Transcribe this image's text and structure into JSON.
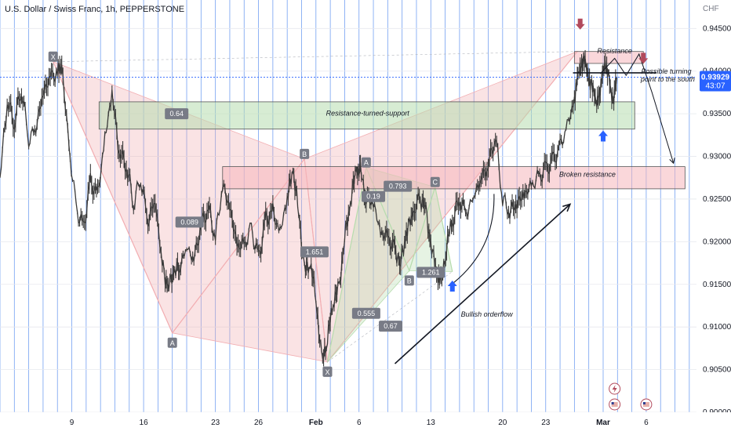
{
  "title": "U.S. Dollar / Swiss Franc, 1h, PEPPERSTONE",
  "currency": "CHF",
  "chart_data": {
    "type": "line",
    "ylim": [
      0.9,
      0.9465
    ],
    "y_ticks": [
      {
        "value": 0.9,
        "label": "0.90000"
      },
      {
        "value": 0.905,
        "label": "0.90500"
      },
      {
        "value": 0.91,
        "label": "0.91000"
      },
      {
        "value": 0.915,
        "label": "0.91500"
      },
      {
        "value": 0.92,
        "label": "0.92000"
      },
      {
        "value": 0.925,
        "label": "0.92500"
      },
      {
        "value": 0.93,
        "label": "0.93000"
      },
      {
        "value": 0.935,
        "label": "0.93500"
      },
      {
        "value": 0.94,
        "label": "0.94000"
      },
      {
        "value": 0.945,
        "label": "0.94500"
      }
    ],
    "x_ticks": [
      {
        "t": 5,
        "label": "9"
      },
      {
        "t": 10,
        "label": "16"
      },
      {
        "t": 15,
        "label": "23"
      },
      {
        "t": 18,
        "label": "26"
      },
      {
        "t": 22,
        "label": "Feb"
      },
      {
        "t": 25,
        "label": "6"
      },
      {
        "t": 30,
        "label": "13"
      },
      {
        "t": 35,
        "label": "20"
      },
      {
        "t": 38,
        "label": "23"
      },
      {
        "t": 42,
        "label": "Mar"
      },
      {
        "t": 45,
        "label": "6"
      }
    ],
    "current_price": {
      "value": 0.93929,
      "label": "0.93929",
      "countdown": "43:07"
    },
    "price_path": [
      [
        0,
        0.9275
      ],
      [
        0.5,
        0.9365
      ],
      [
        1,
        0.934
      ],
      [
        1.5,
        0.938
      ],
      [
        2,
        0.932
      ],
      [
        2.5,
        0.9335
      ],
      [
        3,
        0.9375
      ],
      [
        3.5,
        0.9395
      ],
      [
        4,
        0.9398
      ],
      [
        4.3,
        0.9407
      ],
      [
        4.8,
        0.931
      ],
      [
        5.3,
        0.924
      ],
      [
        5.8,
        0.9215
      ],
      [
        6.3,
        0.927
      ],
      [
        6.8,
        0.9255
      ],
      [
        7.3,
        0.932
      ],
      [
        7.8,
        0.9375
      ],
      [
        8.3,
        0.9305
      ],
      [
        8.8,
        0.929
      ],
      [
        9.3,
        0.9245
      ],
      [
        9.8,
        0.9275
      ],
      [
        10.3,
        0.9225
      ],
      [
        10.8,
        0.925
      ],
      [
        11.3,
        0.9175
      ],
      [
        11.7,
        0.9145
      ],
      [
        12.1,
        0.9165
      ],
      [
        12.5,
        0.917
      ],
      [
        13,
        0.9195
      ],
      [
        13.5,
        0.918
      ],
      [
        14,
        0.922
      ],
      [
        14.5,
        0.924
      ],
      [
        15,
        0.9205
      ],
      [
        15.5,
        0.9265
      ],
      [
        16,
        0.924
      ],
      [
        16.5,
        0.9195
      ],
      [
        17,
        0.9195
      ],
      [
        17.5,
        0.9215
      ],
      [
        18,
        0.918
      ],
      [
        18.5,
        0.9225
      ],
      [
        19,
        0.9235
      ],
      [
        19.5,
        0.921
      ],
      [
        20,
        0.925
      ],
      [
        20.4,
        0.9285
      ],
      [
        20.8,
        0.9235
      ],
      [
        21.2,
        0.9165
      ],
      [
        21.6,
        0.9175
      ],
      [
        22,
        0.9135
      ],
      [
        22.4,
        0.906
      ],
      [
        22.8,
        0.9085
      ],
      [
        23.2,
        0.913
      ],
      [
        23.6,
        0.9145
      ],
      [
        24,
        0.9205
      ],
      [
        24.4,
        0.9245
      ],
      [
        24.8,
        0.9285
      ],
      [
        25.1,
        0.9282
      ],
      [
        25.5,
        0.925
      ],
      [
        26,
        0.9245
      ],
      [
        26.5,
        0.921
      ],
      [
        27,
        0.9205
      ],
      [
        27.5,
        0.919
      ],
      [
        27.9,
        0.9175
      ],
      [
        28.3,
        0.921
      ],
      [
        28.7,
        0.923
      ],
      [
        29.2,
        0.925
      ],
      [
        29.6,
        0.9245
      ],
      [
        30,
        0.9195
      ],
      [
        30.4,
        0.9165
      ],
      [
        30.7,
        0.915
      ],
      [
        31.1,
        0.9195
      ],
      [
        31.5,
        0.9225
      ],
      [
        32,
        0.925
      ],
      [
        32.5,
        0.9235
      ],
      [
        33,
        0.9255
      ],
      [
        33.5,
        0.9275
      ],
      [
        34,
        0.929
      ],
      [
        34.5,
        0.9325
      ],
      [
        35,
        0.925
      ],
      [
        35.5,
        0.9235
      ],
      [
        36,
        0.9245
      ],
      [
        36.5,
        0.9255
      ],
      [
        37,
        0.9265
      ],
      [
        37.5,
        0.9275
      ],
      [
        38,
        0.9285
      ],
      [
        38.5,
        0.9295
      ],
      [
        39,
        0.931
      ],
      [
        39.5,
        0.9335
      ],
      [
        40,
        0.9365
      ],
      [
        40.3,
        0.94
      ],
      [
        40.6,
        0.9415
      ],
      [
        40.9,
        0.94
      ],
      [
        41.2,
        0.938
      ],
      [
        41.5,
        0.9365
      ],
      [
        41.8,
        0.9375
      ],
      [
        42.1,
        0.9415
      ],
      [
        42.4,
        0.9388
      ],
      [
        42.7,
        0.9365
      ],
      [
        42.95,
        0.93929
      ]
    ],
    "zones": [
      {
        "label": "Resistance-turned-support",
        "t0": 6.9,
        "t1": 44.2,
        "y_top": 0.9364,
        "y_bot": 0.9332,
        "fill": "#b7dcae",
        "stroke": "#555555"
      },
      {
        "label": "Broken resistance",
        "t0": 15.5,
        "t1": 47.7,
        "y_top": 0.9288,
        "y_bot": 0.9262,
        "fill": "#f5b7bb",
        "stroke": "#555555"
      },
      {
        "label": "Resistance",
        "t0": 40.0,
        "t1": 44.8,
        "y_top": 0.9423,
        "y_bot": 0.9409,
        "fill": "#f5b7bb",
        "stroke": "#555555"
      }
    ],
    "patterns": [
      {
        "name": "bearish",
        "color": "#f2aeb2",
        "points": [
          {
            "t": 3.7,
            "v": 0.9411,
            "label": "X"
          },
          {
            "t": 12.0,
            "v": 0.9093,
            "label": "A"
          },
          {
            "t": 21.2,
            "v": 0.9297,
            "label": "B"
          },
          {
            "t": 22.8,
            "v": 0.9059,
            "label": "X"
          },
          {
            "t": 40.2,
            "v": 0.9423,
            "label": ""
          }
        ]
      },
      {
        "name": "bullish",
        "color": "#b7dcae",
        "points": [
          {
            "t": 22.8,
            "v": 0.9059,
            "label": "X"
          },
          {
            "t": 25.5,
            "v": 0.9287,
            "label": "A"
          },
          {
            "t": 28.5,
            "v": 0.9166,
            "label": "B"
          },
          {
            "t": 30.3,
            "v": 0.9264,
            "label": "C"
          },
          {
            "t": 31.5,
            "v": 0.9165,
            "label": ""
          }
        ]
      }
    ],
    "ratios": [
      {
        "label": "0.64",
        "t": 12.3,
        "v": 0.935
      },
      {
        "label": "0.089",
        "t": 13.2,
        "v": 0.9223
      },
      {
        "label": "1.651",
        "t": 21.9,
        "v": 0.9188
      },
      {
        "label": "0.555",
        "t": 25.5,
        "v": 0.9116
      },
      {
        "label": "0.67",
        "t": 27.2,
        "v": 0.9101
      },
      {
        "label": "0.793",
        "t": 27.7,
        "v": 0.9265
      },
      {
        "label": "0.19",
        "t": 26.0,
        "v": 0.9253
      },
      {
        "label": "1.261",
        "t": 30.0,
        "v": 0.9164
      }
    ],
    "annotations": [
      {
        "text": "Resistance-turned-support",
        "t": 25.6,
        "v": 0.9348
      },
      {
        "text": "Broken resistance",
        "t": 40.9,
        "v": 0.9276
      },
      {
        "text": "Resistance",
        "t": 42.8,
        "v": 0.9421
      },
      {
        "text": "Possible turning",
        "t": 46.4,
        "v": 0.9397
      },
      {
        "text": "point to the south",
        "t": 46.5,
        "v": 0.9388
      },
      {
        "text": "Bullish orderflow",
        "t": 33.9,
        "v": 0.9112
      }
    ],
    "trend_arrow": {
      "t0": 27.5,
      "v0": 0.9057,
      "t1": 39.7,
      "v1": 0.9244
    },
    "neck_line": {
      "t0": 39.9,
      "t1": 45.7,
      "v": 0.9398
    },
    "projection": [
      [
        41.8,
        0.9397
      ],
      [
        42.8,
        0.9415
      ],
      [
        43.6,
        0.9395
      ],
      [
        44.5,
        0.942
      ],
      [
        45.4,
        0.9375
      ],
      [
        46.9,
        0.9292
      ]
    ],
    "blue_arrows": [
      {
        "t": 31.5,
        "v": 0.9147
      },
      {
        "t": 42.0,
        "v": 0.9323
      }
    ],
    "red_arrows": [
      {
        "t": 40.4,
        "v": 0.9456
      },
      {
        "t": 44.8,
        "v": 0.9416
      }
    ],
    "event_icons": [
      "lightning-icon",
      "us-flag-icon",
      "us-flag-icon"
    ],
    "colors": {
      "grid_blue": "#5b8ff0",
      "candle": "#3a3a3a",
      "price_tag": "#2962ff",
      "blue_arrow": "#2962ff",
      "red_arrow": "#b24a5c",
      "pattern_red": "#f2aeb2",
      "pattern_green": "#b7dcae"
    }
  }
}
